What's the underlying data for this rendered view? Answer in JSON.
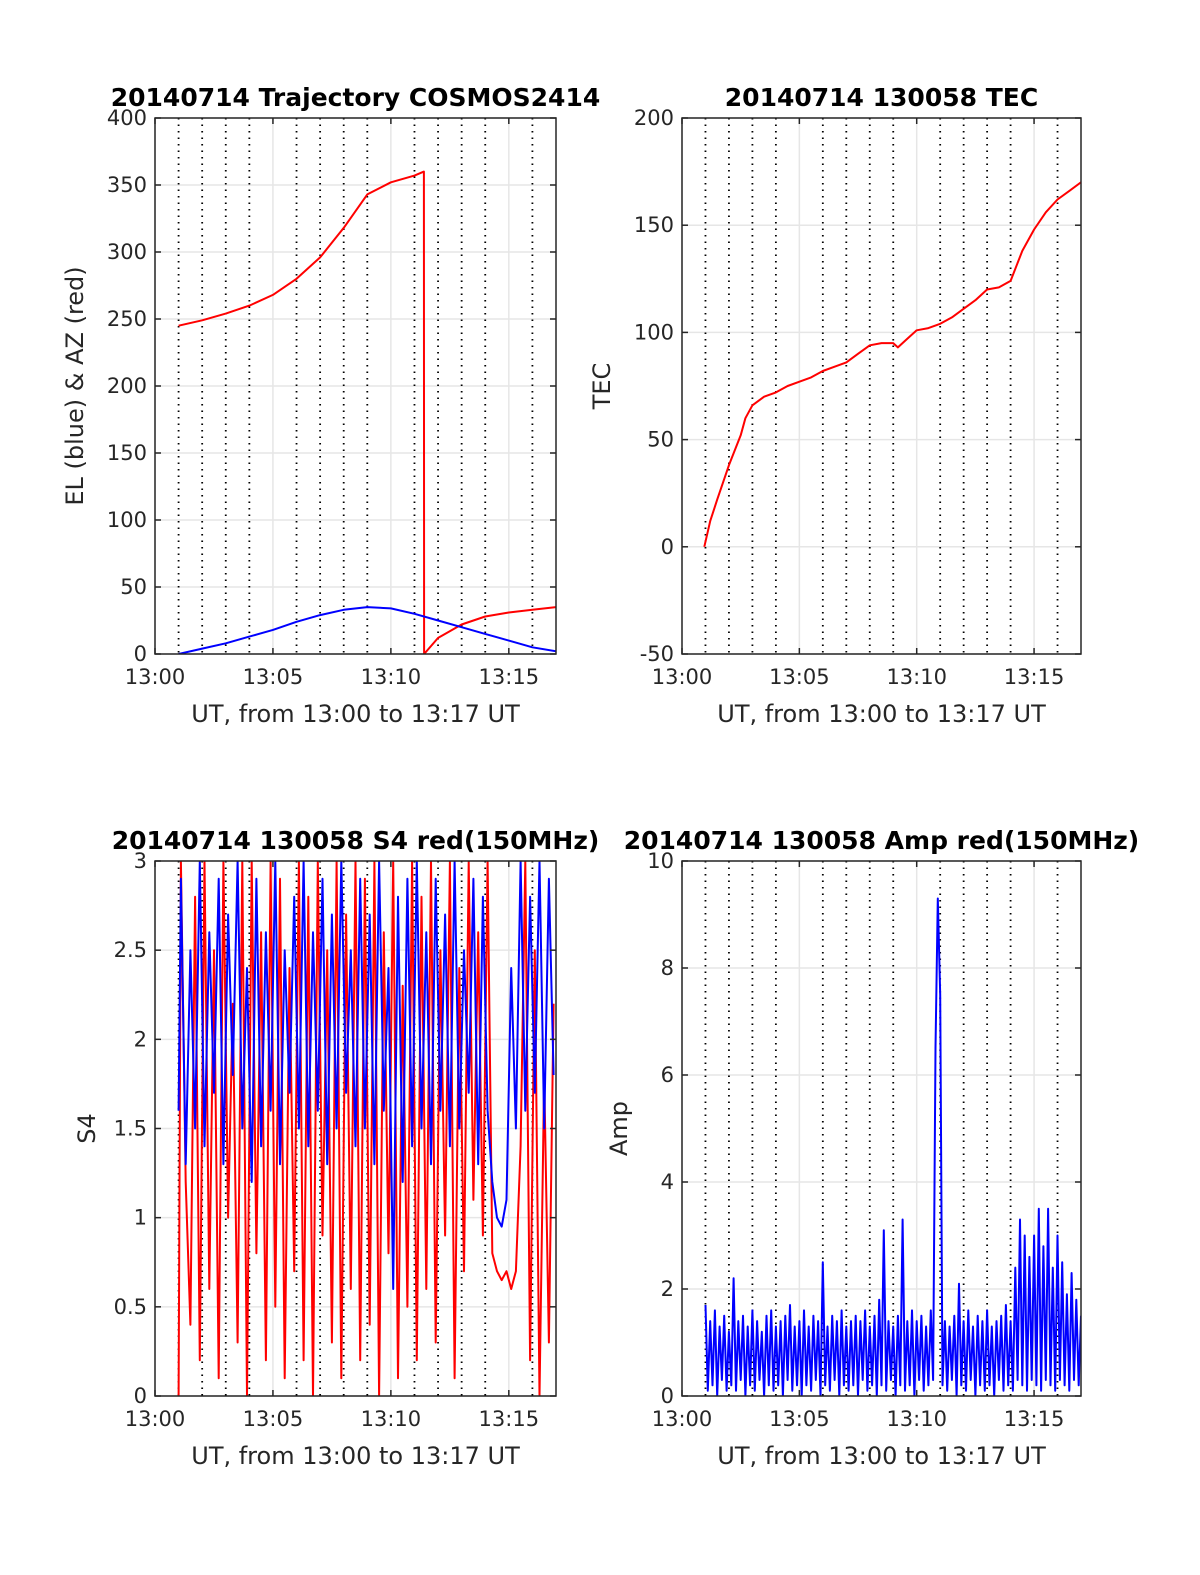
{
  "chart_data": [
    {
      "type": "line",
      "title": "20140714 Trajectory COSMOS2414",
      "xlabel": "UT, from 13:00 to 13:17 UT",
      "ylabel": "EL (blue) & AZ (red)",
      "xlim": [
        0,
        17
      ],
      "ylim": [
        0,
        400
      ],
      "x_ticks": [
        0,
        5,
        10,
        15
      ],
      "x_tick_labels": [
        "13:00",
        "13:05",
        "13:10",
        "13:15"
      ],
      "y_ticks": [
        0,
        50,
        100,
        150,
        200,
        250,
        300,
        350,
        400
      ],
      "y_tick_labels": [
        "0",
        "50",
        "100",
        "150",
        "200",
        "250",
        "300",
        "350",
        "400"
      ],
      "dotted_x": [
        1,
        2,
        3,
        4,
        6,
        7,
        8,
        9,
        11,
        12,
        13,
        14,
        16
      ],
      "grid": true,
      "series": [
        {
          "color": "#ff0000",
          "x": [
            1,
            2,
            3,
            4,
            5,
            6,
            7,
            8,
            9,
            10,
            11,
            11.4,
            11.41,
            12,
            13,
            14,
            15,
            16,
            17
          ],
          "y": [
            245,
            249,
            254,
            260,
            268,
            280,
            296,
            318,
            343,
            352,
            357,
            360,
            0,
            12,
            22,
            28,
            31,
            33,
            35
          ]
        },
        {
          "color": "#0000ff",
          "x": [
            1,
            2,
            3,
            4,
            5,
            6,
            7,
            8,
            9,
            10,
            11,
            12,
            13,
            14,
            15,
            16,
            17
          ],
          "y": [
            0,
            4,
            8,
            13,
            18,
            24,
            29,
            33,
            35,
            34,
            30,
            25,
            20,
            15,
            10,
            5,
            2
          ]
        }
      ]
    },
    {
      "type": "line",
      "title": "20140714 130058 TEC",
      "xlabel": "UT, from 13:00 to 13:17 UT",
      "ylabel": "TEC",
      "xlim": [
        0,
        17
      ],
      "ylim": [
        -50,
        200
      ],
      "x_ticks": [
        0,
        5,
        10,
        15
      ],
      "x_tick_labels": [
        "13:00",
        "13:05",
        "13:10",
        "13:15"
      ],
      "y_ticks": [
        -50,
        0,
        50,
        100,
        150,
        200
      ],
      "y_tick_labels": [
        "-50",
        "0",
        "50",
        "100",
        "150",
        "200"
      ],
      "dotted_x": [
        1,
        2,
        3,
        4,
        6,
        7,
        8,
        9,
        11,
        12,
        13,
        14,
        16
      ],
      "grid": true,
      "series": [
        {
          "color": "#ff0000",
          "x": [
            0.95,
            1.2,
            1.5,
            2.0,
            2.5,
            2.7,
            3.0,
            3.5,
            4.0,
            4.5,
            5.0,
            5.5,
            6.0,
            6.5,
            7.0,
            7.5,
            8.0,
            8.5,
            9.0,
            9.2,
            9.6,
            10.0,
            10.5,
            11.0,
            11.5,
            12.0,
            12.5,
            13.0,
            13.5,
            14.0,
            14.5,
            15.0,
            15.5,
            16.0,
            16.5,
            17.0
          ],
          "y": [
            0,
            12,
            22,
            38,
            52,
            60,
            66,
            70,
            72,
            75,
            77,
            79,
            82,
            84,
            86,
            90,
            94,
            95,
            95,
            93,
            97,
            101,
            102,
            104,
            107,
            111,
            115,
            120,
            121,
            124,
            138,
            148,
            156,
            162,
            166,
            170
          ]
        }
      ]
    },
    {
      "type": "line",
      "title": "20140714 130058 S4 red(150MHz)",
      "xlabel": "UT, from 13:00 to 13:17 UT",
      "ylabel": "S4",
      "xlim": [
        0,
        17
      ],
      "ylim": [
        0,
        3
      ],
      "x_ticks": [
        0,
        5,
        10,
        15
      ],
      "x_tick_labels": [
        "13:00",
        "13:05",
        "13:10",
        "13:15"
      ],
      "y_ticks": [
        0,
        0.5,
        1,
        1.5,
        2,
        2.5,
        3
      ],
      "y_tick_labels": [
        "0",
        "0.5",
        "1",
        "1.5",
        "2",
        "2.5",
        "3"
      ],
      "dotted_x": [
        1,
        2,
        3,
        4,
        6,
        7,
        8,
        9,
        11,
        12,
        13,
        14,
        16
      ],
      "grid": true,
      "series": [
        {
          "color": "#ff0000",
          "x": [
            1.0,
            1.1,
            1.3,
            1.5,
            1.7,
            1.9,
            2.1,
            2.3,
            2.5,
            2.7,
            2.9,
            3.1,
            3.3,
            3.5,
            3.7,
            3.9,
            4.1,
            4.3,
            4.5,
            4.7,
            4.9,
            5.1,
            5.3,
            5.5,
            5.7,
            5.9,
            6.1,
            6.3,
            6.5,
            6.7,
            6.9,
            7.1,
            7.3,
            7.5,
            7.7,
            7.9,
            8.1,
            8.3,
            8.5,
            8.7,
            8.9,
            9.1,
            9.3,
            9.5,
            9.7,
            9.9,
            10.1,
            10.3,
            10.5,
            10.7,
            10.9,
            11.1,
            11.3,
            11.5,
            11.7,
            11.9,
            12.1,
            12.3,
            12.5,
            12.7,
            12.9,
            13.1,
            13.3,
            13.5,
            13.7,
            13.9,
            14.1,
            14.3,
            14.5,
            14.7,
            14.9,
            15.1,
            15.3,
            15.5,
            15.7,
            15.9,
            16.1,
            16.3,
            16.5,
            16.7,
            16.9
          ],
          "y": [
            0,
            3,
            1.2,
            0.4,
            2.8,
            0.2,
            3,
            0.6,
            2.5,
            0.1,
            3,
            1.0,
            2.2,
            0.3,
            3,
            0.0,
            3,
            0.8,
            2.6,
            0.2,
            3,
            0.5,
            2.9,
            0.1,
            2.4,
            0.7,
            3,
            0.2,
            2.8,
            0.0,
            3,
            0.9,
            2.5,
            0.3,
            3,
            0.1,
            2.7,
            0.6,
            3,
            0.2,
            2.9,
            0.4,
            3,
            0.0,
            2.6,
            0.8,
            3,
            0.1,
            2.3,
            0.5,
            3,
            0.2,
            2.8,
            0.6,
            3,
            0.3,
            2.5,
            0.9,
            3,
            0.1,
            2.4,
            0.7,
            3,
            1.1,
            2.6,
            0.9,
            3,
            0.8,
            0.7,
            0.65,
            0.7,
            0.6,
            0.7,
            1.4,
            3,
            0.2,
            2.5,
            0.0,
            1.8,
            0.3,
            2.2
          ]
        },
        {
          "color": "#0000ff",
          "x": [
            1.0,
            1.1,
            1.3,
            1.5,
            1.7,
            1.9,
            2.1,
            2.3,
            2.5,
            2.7,
            2.9,
            3.1,
            3.3,
            3.5,
            3.7,
            3.9,
            4.1,
            4.3,
            4.5,
            4.7,
            4.9,
            5.1,
            5.3,
            5.5,
            5.7,
            5.9,
            6.1,
            6.3,
            6.5,
            6.7,
            6.9,
            7.1,
            7.3,
            7.5,
            7.7,
            7.9,
            8.1,
            8.3,
            8.5,
            8.7,
            8.9,
            9.1,
            9.3,
            9.5,
            9.7,
            9.9,
            10.1,
            10.3,
            10.5,
            10.7,
            10.9,
            11.1,
            11.3,
            11.5,
            11.7,
            11.9,
            12.1,
            12.3,
            12.5,
            12.7,
            12.9,
            13.1,
            13.3,
            13.5,
            13.7,
            13.9,
            14.1,
            14.3,
            14.5,
            14.7,
            14.9,
            15.1,
            15.3,
            15.5,
            15.7,
            15.9,
            16.1,
            16.3,
            16.5,
            16.7,
            16.9
          ],
          "y": [
            1.6,
            2.9,
            1.3,
            2.5,
            1.5,
            3.0,
            1.4,
            2.6,
            1.7,
            2.9,
            1.3,
            2.7,
            1.8,
            3.0,
            1.5,
            2.4,
            1.2,
            2.9,
            1.4,
            2.6,
            1.6,
            3.0,
            1.3,
            2.5,
            1.7,
            2.8,
            1.5,
            3.0,
            1.4,
            2.6,
            1.6,
            2.9,
            1.3,
            2.7,
            1.5,
            3.0,
            1.7,
            2.5,
            1.4,
            2.9,
            1.5,
            2.7,
            1.3,
            3.0,
            1.6,
            2.4,
            0.6,
            2.8,
            1.2,
            2.9,
            1.4,
            3.0,
            1.5,
            2.6,
            1.3,
            2.9,
            1.6,
            2.7,
            1.4,
            3.0,
            1.5,
            2.5,
            1.7,
            2.9,
            1.3,
            2.8,
            1.6,
            1.2,
            1.0,
            0.95,
            1.1,
            2.4,
            1.5,
            3.0,
            1.6,
            2.8,
            1.7,
            3.0,
            1.5,
            2.9,
            1.8
          ]
        }
      ]
    },
    {
      "type": "line",
      "title": "20140714 130058 Amp red(150MHz)",
      "xlabel": "UT, from 13:00 to 13:17 UT",
      "ylabel": "Amp",
      "xlim": [
        0,
        17
      ],
      "ylim": [
        0,
        10
      ],
      "x_ticks": [
        0,
        5,
        10,
        15
      ],
      "x_tick_labels": [
        "13:00",
        "13:05",
        "13:10",
        "13:15"
      ],
      "y_ticks": [
        0,
        2,
        4,
        6,
        8,
        10
      ],
      "y_tick_labels": [
        "0",
        "2",
        "4",
        "6",
        "8",
        "10"
      ],
      "dotted_x": [
        1,
        2,
        3,
        4,
        6,
        7,
        8,
        9,
        11,
        12,
        13,
        14,
        16
      ],
      "grid": true,
      "series": [
        {
          "color": "#0000ff",
          "x": [
            1.0,
            1.1,
            1.2,
            1.3,
            1.4,
            1.5,
            1.6,
            1.7,
            1.8,
            1.9,
            2.0,
            2.1,
            2.2,
            2.3,
            2.4,
            2.5,
            2.6,
            2.7,
            2.8,
            2.9,
            3.0,
            3.1,
            3.2,
            3.3,
            3.4,
            3.5,
            3.6,
            3.7,
            3.8,
            3.9,
            4.0,
            4.1,
            4.2,
            4.3,
            4.4,
            4.5,
            4.6,
            4.7,
            4.8,
            4.9,
            5.0,
            5.1,
            5.2,
            5.3,
            5.4,
            5.5,
            5.6,
            5.7,
            5.8,
            5.9,
            6.0,
            6.1,
            6.2,
            6.3,
            6.4,
            6.5,
            6.6,
            6.7,
            6.8,
            6.9,
            7.0,
            7.1,
            7.2,
            7.3,
            7.4,
            7.5,
            7.6,
            7.7,
            7.8,
            7.9,
            8.0,
            8.1,
            8.2,
            8.3,
            8.4,
            8.5,
            8.6,
            8.7,
            8.8,
            8.9,
            9.0,
            9.1,
            9.2,
            9.3,
            9.4,
            9.5,
            9.6,
            9.7,
            9.8,
            9.9,
            10.0,
            10.1,
            10.2,
            10.3,
            10.4,
            10.5,
            10.6,
            10.7,
            10.8,
            10.9,
            11.0,
            11.1,
            11.2,
            11.3,
            11.4,
            11.5,
            11.6,
            11.7,
            11.8,
            11.9,
            12.0,
            12.1,
            12.2,
            12.3,
            12.4,
            12.5,
            12.6,
            12.7,
            12.8,
            12.9,
            13.0,
            13.1,
            13.2,
            13.3,
            13.4,
            13.5,
            13.6,
            13.7,
            13.8,
            13.9,
            14.0,
            14.1,
            14.2,
            14.3,
            14.4,
            14.5,
            14.6,
            14.7,
            14.8,
            14.9,
            15.0,
            15.1,
            15.2,
            15.3,
            15.4,
            15.5,
            15.6,
            15.7,
            15.8,
            15.9,
            16.0,
            16.1,
            16.2,
            16.3,
            16.4,
            16.5,
            16.6,
            16.7,
            16.8,
            16.9,
            17.0
          ],
          "y": [
            1.7,
            0.1,
            1.4,
            0.2,
            1.6,
            0.0,
            1.3,
            0.3,
            1.5,
            0.1,
            1.2,
            0.2,
            2.2,
            0.1,
            1.4,
            0.3,
            1.5,
            0.0,
            1.3,
            0.2,
            1.6,
            0.1,
            1.4,
            0.3,
            1.2,
            0.0,
            1.5,
            0.2,
            1.6,
            0.1,
            1.3,
            0.2,
            1.4,
            0.0,
            1.5,
            0.3,
            1.7,
            0.1,
            1.3,
            0.2,
            1.4,
            0.0,
            1.6,
            0.2,
            1.3,
            0.1,
            1.5,
            0.3,
            1.4,
            0.0,
            2.5,
            0.2,
            1.3,
            0.1,
            1.5,
            0.3,
            1.4,
            0.0,
            1.6,
            0.2,
            1.3,
            0.1,
            1.4,
            0.2,
            1.5,
            0.0,
            1.4,
            0.3,
            1.6,
            0.1,
            1.3,
            0.2,
            1.5,
            0.0,
            1.8,
            0.2,
            3.1,
            0.1,
            1.4,
            0.3,
            1.3,
            0.0,
            1.5,
            0.2,
            3.3,
            0.1,
            1.4,
            0.2,
            1.6,
            0.0,
            1.4,
            0.3,
            1.5,
            0.1,
            1.3,
            0.2,
            1.6,
            0.3,
            6.5,
            9.3,
            7.5,
            0.2,
            1.4,
            0.1,
            1.3,
            0.3,
            1.5,
            0.0,
            2.1,
            0.2,
            1.4,
            0.1,
            1.6,
            0.3,
            1.3,
            0.0,
            1.5,
            0.2,
            1.4,
            0.1,
            1.6,
            0.2,
            1.3,
            0.0,
            1.4,
            0.3,
            1.5,
            0.1,
            1.7,
            0.2,
            1.4,
            0.1,
            2.4,
            0.3,
            3.3,
            0.2,
            3.0,
            0.1,
            2.6,
            0.3,
            3.0,
            0.2,
            3.5,
            0.1,
            2.8,
            0.3,
            3.5,
            0.2,
            2.4,
            0.1,
            3.0,
            0.3,
            2.5,
            0.2,
            1.9,
            0.1,
            2.3,
            0.3,
            1.8,
            0.2,
            1.5
          ]
        }
      ]
    }
  ]
}
